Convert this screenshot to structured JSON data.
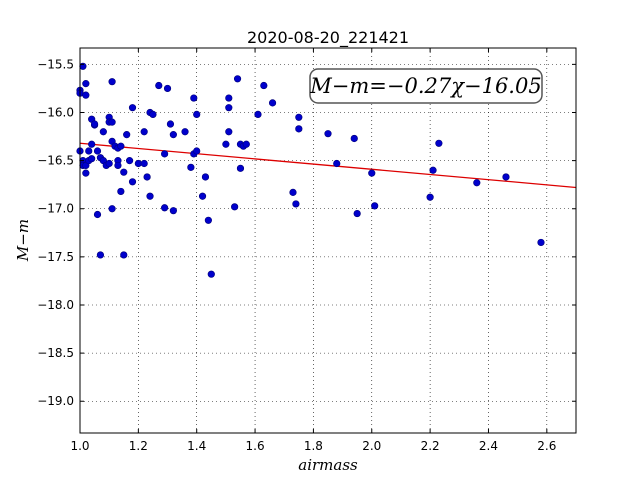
{
  "chart_data": {
    "type": "scatter",
    "title": "2020-08-20_221421",
    "xlabel": "airmass",
    "ylabel": "M−m",
    "xlim": [
      1.0,
      2.7
    ],
    "ylim": [
      -19.33,
      -15.33
    ],
    "y_inverted": true,
    "xticks": [
      1.0,
      1.2,
      1.4,
      1.6,
      1.8,
      2.0,
      2.2,
      2.4,
      2.6
    ],
    "xtick_labels": [
      "1.0",
      "1.2",
      "1.4",
      "1.6",
      "1.8",
      "2.0",
      "2.2",
      "2.4",
      "2.6"
    ],
    "yticks": [
      -15.5,
      -16.0,
      -16.5,
      -17.0,
      -17.5,
      -18.0,
      -18.5,
      -19.0
    ],
    "ytick_labels": [
      "−15.5",
      "−16.0",
      "−16.5",
      "−17.0",
      "−17.5",
      "−18.0",
      "−18.5",
      "−19.0"
    ],
    "grid": true,
    "annotation": "M−m=−0.27χ−16.05",
    "fit": {
      "slope": -0.27,
      "intercept": -16.05,
      "color": "#dd0000"
    },
    "marker_color": "#0000cc",
    "points": [
      [
        1.0,
        -15.77
      ],
      [
        1.0,
        -15.8
      ],
      [
        1.01,
        -15.52
      ],
      [
        1.02,
        -15.7
      ],
      [
        1.02,
        -15.82
      ],
      [
        1.0,
        -16.4
      ],
      [
        1.01,
        -16.5
      ],
      [
        1.01,
        -16.55
      ],
      [
        1.02,
        -16.55
      ],
      [
        1.02,
        -16.63
      ],
      [
        1.03,
        -16.5
      ],
      [
        1.03,
        -16.4
      ],
      [
        1.04,
        -16.33
      ],
      [
        1.04,
        -16.07
      ],
      [
        1.05,
        -16.13
      ],
      [
        1.05,
        -16.12
      ],
      [
        1.04,
        -16.48
      ],
      [
        1.06,
        -16.4
      ],
      [
        1.07,
        -16.47
      ],
      [
        1.08,
        -16.2
      ],
      [
        1.08,
        -16.5
      ],
      [
        1.09,
        -16.55
      ],
      [
        1.1,
        -16.53
      ],
      [
        1.1,
        -16.05
      ],
      [
        1.1,
        -16.1
      ],
      [
        1.11,
        -16.1
      ],
      [
        1.11,
        -15.68
      ],
      [
        1.11,
        -16.3
      ],
      [
        1.12,
        -16.35
      ],
      [
        1.13,
        -16.37
      ],
      [
        1.13,
        -16.5
      ],
      [
        1.13,
        -16.55
      ],
      [
        1.14,
        -16.35
      ],
      [
        1.14,
        -16.82
      ],
      [
        1.15,
        -16.62
      ],
      [
        1.15,
        -17.48
      ],
      [
        1.06,
        -17.06
      ],
      [
        1.07,
        -17.48
      ],
      [
        1.11,
        -17.0
      ],
      [
        1.16,
        -16.23
      ],
      [
        1.17,
        -16.5
      ],
      [
        1.18,
        -15.95
      ],
      [
        1.18,
        -16.72
      ],
      [
        1.2,
        -16.53
      ],
      [
        1.22,
        -16.53
      ],
      [
        1.22,
        -16.2
      ],
      [
        1.23,
        -16.67
      ],
      [
        1.24,
        -16.0
      ],
      [
        1.24,
        -16.87
      ],
      [
        1.25,
        -16.02
      ],
      [
        1.27,
        -15.72
      ],
      [
        1.29,
        -16.43
      ],
      [
        1.29,
        -16.99
      ],
      [
        1.3,
        -15.75
      ],
      [
        1.31,
        -16.12
      ],
      [
        1.32,
        -16.23
      ],
      [
        1.32,
        -17.02
      ],
      [
        1.36,
        -16.2
      ],
      [
        1.38,
        -16.57
      ],
      [
        1.39,
        -15.85
      ],
      [
        1.39,
        -16.43
      ],
      [
        1.4,
        -16.4
      ],
      [
        1.4,
        -16.02
      ],
      [
        1.42,
        -16.87
      ],
      [
        1.43,
        -16.67
      ],
      [
        1.44,
        -17.12
      ],
      [
        1.45,
        -17.68
      ],
      [
        1.5,
        -16.33
      ],
      [
        1.51,
        -15.85
      ],
      [
        1.51,
        -15.95
      ],
      [
        1.51,
        -16.2
      ],
      [
        1.53,
        -16.98
      ],
      [
        1.54,
        -15.65
      ],
      [
        1.55,
        -16.33
      ],
      [
        1.55,
        -16.58
      ],
      [
        1.56,
        -16.35
      ],
      [
        1.57,
        -16.33
      ],
      [
        1.61,
        -16.02
      ],
      [
        1.63,
        -15.72
      ],
      [
        1.66,
        -15.9
      ],
      [
        1.73,
        -16.83
      ],
      [
        1.74,
        -16.95
      ],
      [
        1.75,
        -16.05
      ],
      [
        1.75,
        -16.17
      ],
      [
        1.85,
        -16.22
      ],
      [
        1.88,
        -16.53
      ],
      [
        1.94,
        -16.27
      ],
      [
        1.95,
        -17.05
      ],
      [
        2.0,
        -16.63
      ],
      [
        2.01,
        -16.97
      ],
      [
        2.2,
        -16.88
      ],
      [
        2.21,
        -16.6
      ],
      [
        2.23,
        -16.32
      ],
      [
        2.36,
        -16.73
      ],
      [
        2.46,
        -16.67
      ],
      [
        2.58,
        -17.35
      ]
    ]
  }
}
